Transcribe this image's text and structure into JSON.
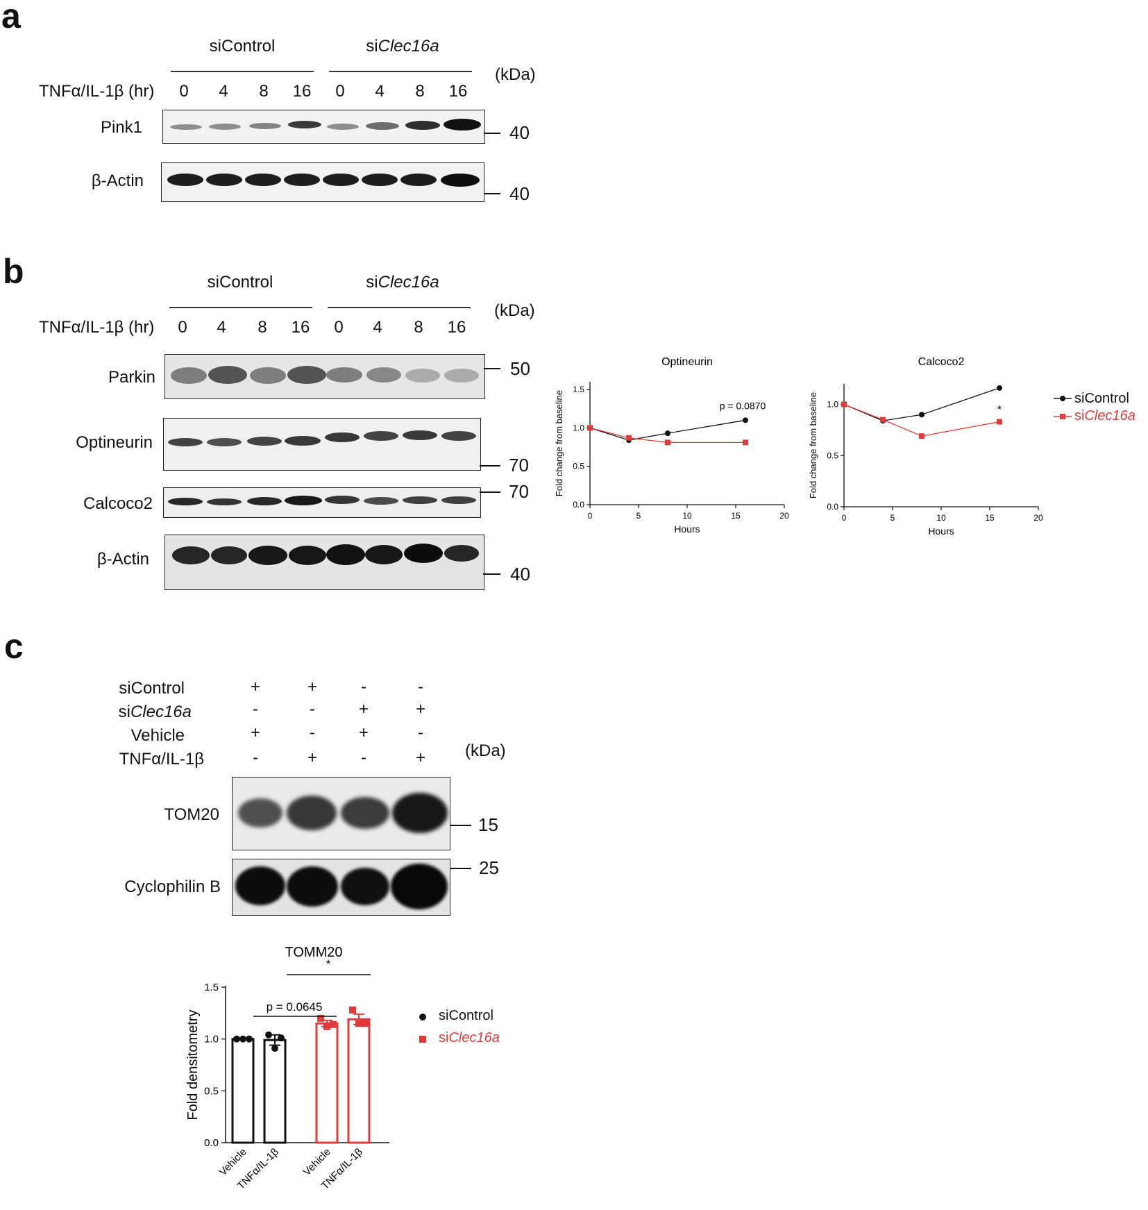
{
  "panel_a": {
    "letter": "a",
    "group1": "siControl",
    "group2_prefix": "si",
    "group2_italic": "Clec16a",
    "kda": "(kDa)",
    "treatment_label": "TNFα/IL-1β (hr)",
    "lanes": [
      "0",
      "4",
      "8",
      "16",
      "0",
      "4",
      "8",
      "16"
    ],
    "rows": [
      {
        "label": "Pink1",
        "marker": "40"
      },
      {
        "label": "β-Actin",
        "marker": "40"
      }
    ]
  },
  "panel_b": {
    "letter": "b",
    "group1": "siControl",
    "group2_prefix": "si",
    "group2_italic": "Clec16a",
    "kda": "(kDa)",
    "treatment_label": "TNFα/IL-1β (hr)",
    "lanes": [
      "0",
      "4",
      "8",
      "16",
      "0",
      "4",
      "8",
      "16"
    ],
    "rows": [
      {
        "label": "Parkin",
        "marker": "50"
      },
      {
        "label": "Optineurin",
        "marker": "70"
      },
      {
        "label": "Calcoco2",
        "marker": "70"
      },
      {
        "label": "β-Actin",
        "marker": "40"
      }
    ]
  },
  "panel_c": {
    "letter": "c",
    "conditions": [
      {
        "label_prefix": "siControl",
        "label_italic": "",
        "signs": [
          "+",
          "+",
          "-",
          "-"
        ]
      },
      {
        "label_prefix": "si",
        "label_italic": "Clec16a",
        "signs": [
          "-",
          "-",
          "+",
          "+"
        ]
      },
      {
        "label_prefix": "Vehicle",
        "label_italic": "",
        "signs": [
          "+",
          "-",
          "+",
          "-"
        ]
      },
      {
        "label_prefix": "TNFα/IL-1β",
        "label_italic": "",
        "signs": [
          "-",
          "+",
          "-",
          "+"
        ]
      }
    ],
    "kda": "(kDa)",
    "rows": [
      {
        "label": "TOM20",
        "marker": "15"
      },
      {
        "label": "Cyclophilin B",
        "marker": "25"
      }
    ]
  },
  "colors": {
    "siControl": "#111111",
    "siClec16a": "#e03a3a"
  },
  "chart_data": [
    {
      "type": "line",
      "title": "Optineurin",
      "xlabel": "Hours",
      "ylabel": "Fold change from baseline",
      "xlim": [
        0,
        20
      ],
      "ylim": [
        0,
        1.6
      ],
      "xticks": [
        "0",
        "5",
        "10",
        "15",
        "20"
      ],
      "yticks": [
        "0.0",
        "0.5",
        "1.0",
        "1.5"
      ],
      "x": [
        0,
        4,
        8,
        16
      ],
      "series": [
        {
          "name": "siControl",
          "values": [
            1.0,
            0.84,
            0.93,
            1.1
          ]
        },
        {
          "name": "siClec16a",
          "values": [
            1.0,
            0.87,
            0.81,
            0.81
          ]
        }
      ],
      "annotation": "p = 0.0870"
    },
    {
      "type": "line",
      "title": "Calcoco2",
      "xlabel": "Hours",
      "ylabel": "Fold change from baseline",
      "xlim": [
        0,
        20
      ],
      "ylim": [
        0,
        1.2
      ],
      "xticks": [
        "0",
        "5",
        "10",
        "15",
        "20"
      ],
      "yticks": [
        "0.0",
        "0.5",
        "1.0"
      ],
      "x": [
        0,
        4,
        8,
        16
      ],
      "series": [
        {
          "name": "siControl",
          "values": [
            1.0,
            0.84,
            0.9,
            1.16
          ]
        },
        {
          "name": "siClec16a",
          "values": [
            1.0,
            0.85,
            0.69,
            0.83
          ]
        }
      ],
      "annotation": "*",
      "legend": [
        "siControl",
        "siClec16a"
      ],
      "legend_position": "right"
    },
    {
      "type": "bar",
      "title": "TOMM20",
      "ylabel": "Fold densitometry",
      "ylim": [
        0,
        1.5
      ],
      "yticks": [
        "0.0",
        "0.5",
        "1.0",
        "1.5"
      ],
      "categories": [
        "Vehicle",
        "TNFα/IL-1β",
        "Vehicle",
        "TNFα/IL-1β"
      ],
      "group": [
        "siControl",
        "siControl",
        "siClec16a",
        "siClec16a"
      ],
      "values": [
        1.0,
        0.99,
        1.15,
        1.19
      ],
      "sem": [
        0.0,
        0.05,
        0.03,
        0.05
      ],
      "points": [
        [
          1.0,
          1.0,
          1.0
        ],
        [
          1.04,
          0.91,
          1.01
        ],
        [
          1.2,
          1.12,
          1.14
        ],
        [
          1.28,
          1.15,
          1.15
        ]
      ],
      "annotations": [
        "p = 0.0645",
        "*"
      ],
      "legend": [
        "siControl",
        "siClec16a"
      ],
      "legend_position": "right"
    }
  ]
}
